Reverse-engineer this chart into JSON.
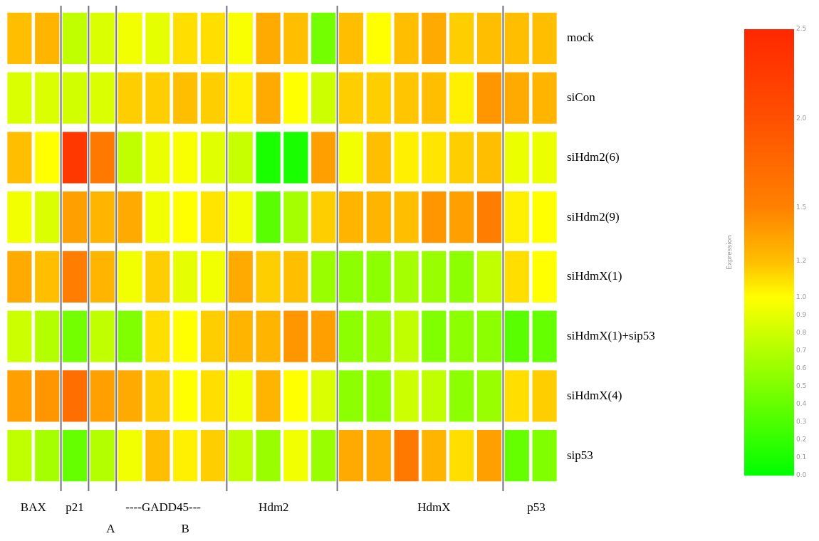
{
  "chart_data": {
    "type": "heatmap",
    "categories": [
      null,
      null,
      null,
      null,
      null,
      null,
      null,
      null,
      null,
      null,
      null,
      null,
      null,
      null,
      null,
      null,
      null,
      null,
      null,
      null
    ],
    "y_categories": [
      "mock",
      "siCon",
      "siHdm2(6)",
      "siHdm2(9)",
      "siHdmX(1)",
      "siHdmX(1)+sip53",
      "siHdmX(4)",
      "sip53"
    ],
    "cells": [
      [
        1.2,
        1.25,
        0.75,
        0.85,
        0.95,
        0.9,
        1.1,
        1.1,
        0.98,
        1.3,
        1.2,
        0.45,
        1.2,
        1.0,
        1.2,
        1.3,
        1.15,
        1.2,
        1.2,
        1.2
      ],
      [
        0.85,
        0.85,
        0.82,
        0.85,
        1.15,
        1.15,
        1.2,
        1.15,
        1.05,
        1.3,
        1.0,
        0.8,
        1.15,
        1.15,
        1.18,
        1.2,
        1.05,
        1.4,
        1.3,
        1.25
      ],
      [
        1.2,
        1.0,
        2.3,
        1.6,
        0.75,
        0.92,
        0.98,
        0.88,
        0.78,
        0.1,
        0.1,
        1.35,
        0.95,
        1.2,
        1.05,
        1.08,
        1.15,
        1.2,
        0.92,
        0.92
      ],
      [
        0.95,
        0.85,
        1.35,
        1.25,
        1.3,
        0.95,
        1.0,
        1.08,
        0.95,
        0.35,
        0.65,
        1.15,
        1.25,
        1.25,
        1.2,
        1.4,
        1.35,
        1.55,
        1.05,
        1.0
      ],
      [
        1.3,
        1.2,
        1.55,
        1.25,
        0.95,
        1.15,
        0.9,
        0.95,
        1.3,
        1.15,
        1.2,
        0.6,
        0.55,
        0.55,
        0.65,
        0.6,
        0.55,
        0.75,
        1.1,
        1.0
      ],
      [
        0.8,
        0.7,
        0.45,
        0.75,
        0.5,
        1.1,
        1.0,
        1.15,
        1.25,
        1.25,
        1.4,
        1.35,
        0.55,
        0.6,
        0.75,
        0.5,
        0.55,
        0.55,
        0.35,
        0.4
      ],
      [
        1.35,
        1.4,
        1.7,
        1.35,
        1.3,
        1.15,
        1.0,
        1.1,
        0.95,
        1.25,
        1.0,
        0.85,
        0.55,
        0.55,
        0.8,
        0.75,
        0.55,
        0.6,
        1.1,
        1.15
      ],
      [
        0.75,
        0.65,
        0.4,
        0.7,
        0.95,
        1.2,
        1.05,
        1.15,
        0.75,
        0.6,
        0.95,
        0.6,
        1.3,
        1.3,
        1.6,
        1.25,
        1.1,
        1.35,
        0.4,
        0.5
      ]
    ],
    "clim": [
      0,
      2.5
    ],
    "cticks": [
      {
        "value": 0,
        "label": "0.0"
      },
      0.1,
      0.2,
      0.3,
      0.4,
      0.5,
      0.6,
      0.7,
      0.8,
      0.9,
      {
        "value": 1,
        "label": "1.0"
      },
      1.2,
      1.5,
      {
        "value": 2,
        "label": "2.0"
      },
      2.5
    ],
    "clabel": "Expression",
    "annotations": [
      "BAX",
      "p21",
      "----GADD45---",
      "Hdm2",
      "HdmX",
      "p53",
      "A",
      "B"
    ]
  }
}
